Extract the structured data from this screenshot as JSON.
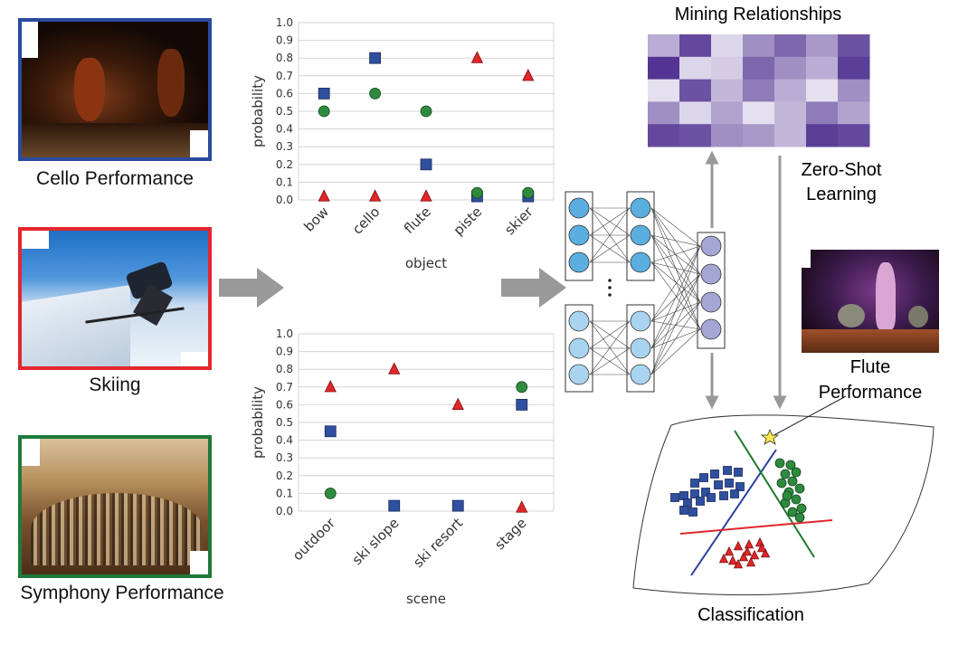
{
  "inputs": [
    {
      "caption": "Cello Performance",
      "frame_color": "#2a4a9e"
    },
    {
      "caption": "Skiing",
      "frame_color": "#e3262d"
    },
    {
      "caption": "Symphony Performance",
      "frame_color": "#1f7a3a"
    }
  ],
  "right_labels": {
    "mining": "Mining Relationships",
    "zero_shot_1": "Zero-Shot",
    "zero_shot_2": "Learning",
    "flute_1": "Flute",
    "flute_2": "Performance",
    "classification": "Classification"
  },
  "colors": {
    "cello_square": "#2f4f9f",
    "skiing_triangle": "#e0262a",
    "symphony_circle": "#2e8b3e",
    "arrow": "#999999"
  },
  "chart_data": [
    {
      "type": "scatter",
      "xlabel": "object",
      "ylabel": "probability",
      "ylim": [
        0,
        1.0
      ],
      "yticks": [
        "0.0",
        "0.1",
        "0.2",
        "0.3",
        "0.4",
        "0.5",
        "0.6",
        "0.7",
        "0.8",
        "0.9",
        "1.0"
      ],
      "categories": [
        "bow",
        "cello",
        "flute",
        "piste",
        "skier"
      ],
      "series": [
        {
          "marker": "square",
          "color": "#2f4f9f",
          "values": [
            0.6,
            0.8,
            0.2,
            0.02,
            0.02
          ]
        },
        {
          "marker": "circle",
          "color": "#2e8b3e",
          "values": [
            0.5,
            0.6,
            0.5,
            0.04,
            0.04
          ]
        },
        {
          "marker": "triangle",
          "color": "#e0262a",
          "values": [
            0.02,
            0.02,
            0.02,
            0.8,
            0.7
          ]
        }
      ]
    },
    {
      "type": "scatter",
      "xlabel": "scene",
      "ylabel": "probability",
      "ylim": [
        0,
        1.0
      ],
      "yticks": [
        "0.0",
        "0.1",
        "0.2",
        "0.3",
        "0.4",
        "0.5",
        "0.6",
        "0.7",
        "0.8",
        "0.9",
        "1.0"
      ],
      "categories": [
        "outdoor",
        "ski slope",
        "ski resort",
        "stage"
      ],
      "series": [
        {
          "marker": "triangle",
          "color": "#e0262a",
          "values": [
            0.7,
            0.8,
            0.6,
            0.02
          ]
        },
        {
          "marker": "square",
          "color": "#2f4f9f",
          "values": [
            0.45,
            0.03,
            0.03,
            0.6
          ]
        },
        {
          "marker": "circle",
          "color": "#2e8b3e",
          "values": [
            0.1,
            null,
            null,
            0.7
          ]
        }
      ]
    }
  ],
  "heatmap": {
    "rows": 5,
    "cols": 7,
    "values": [
      [
        0.35,
        0.85,
        0.15,
        0.5,
        0.7,
        0.45,
        0.8
      ],
      [
        0.95,
        0.15,
        0.2,
        0.7,
        0.5,
        0.35,
        0.9
      ],
      [
        0.1,
        0.8,
        0.3,
        0.6,
        0.35,
        0.1,
        0.5
      ],
      [
        0.5,
        0.15,
        0.4,
        0.1,
        0.3,
        0.6,
        0.4
      ],
      [
        0.85,
        0.8,
        0.5,
        0.45,
        0.3,
        0.9,
        0.85
      ]
    ]
  }
}
